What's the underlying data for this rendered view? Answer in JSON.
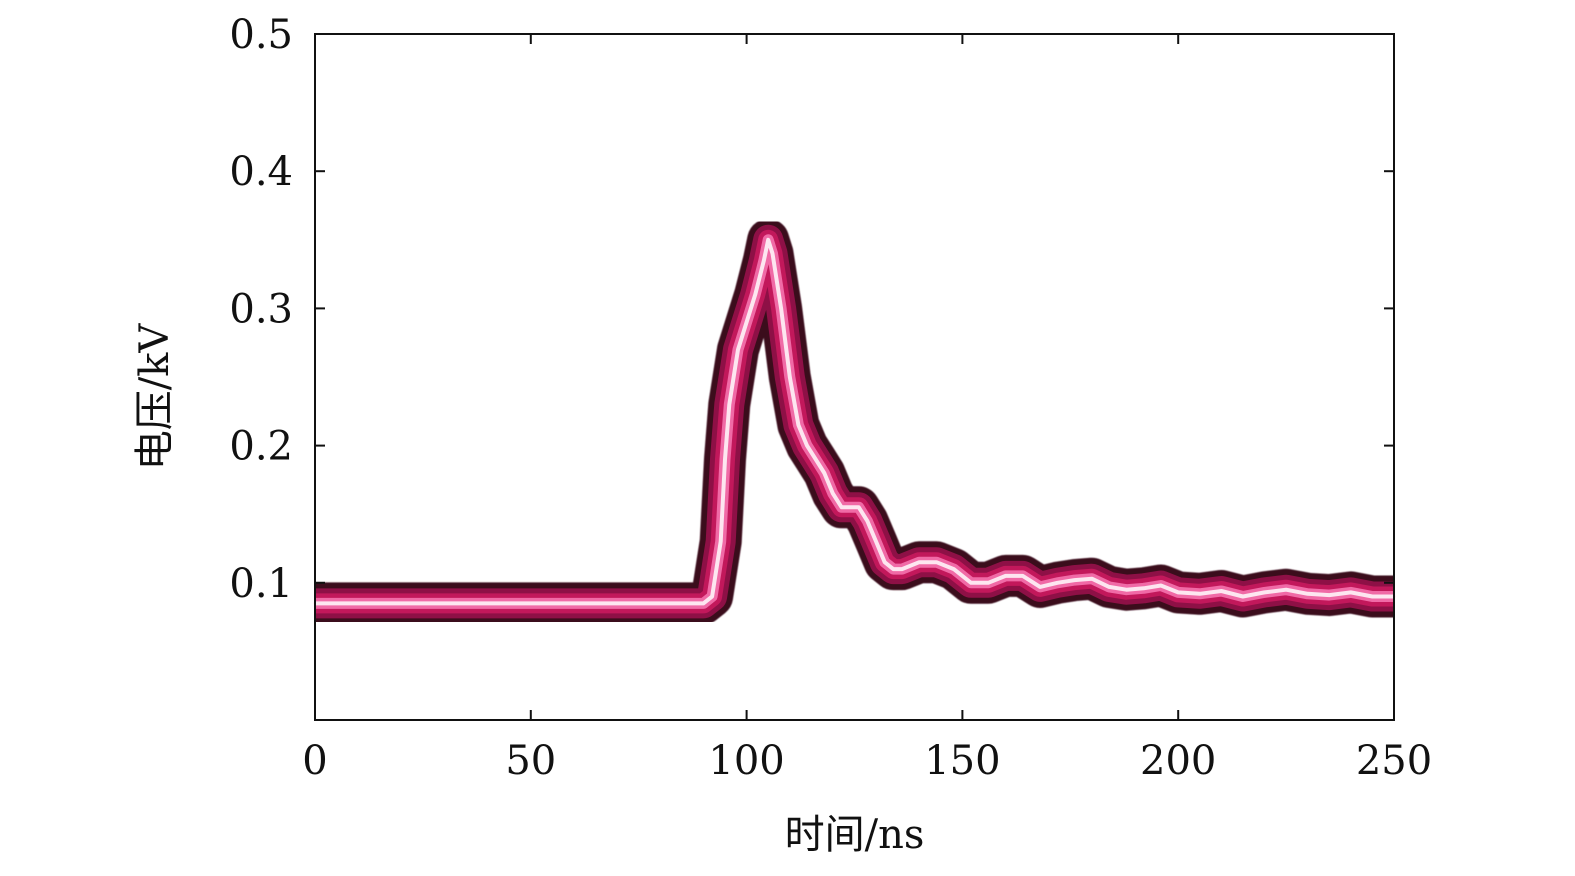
{
  "chart_data": {
    "type": "line",
    "title": "",
    "xlabel": "时间/ns",
    "ylabel": "电压/kV",
    "xlim": [
      0,
      250
    ],
    "ylim": [
      0,
      0.5
    ],
    "x_ticks": [
      "0",
      "50",
      "100",
      "150",
      "200",
      "250"
    ],
    "y_ticks": [
      "0.1",
      "0.2",
      "0.3",
      "0.4",
      "0.5"
    ],
    "grid": false,
    "legend": "none",
    "series": [
      {
        "color": "#c2185b",
        "x": [
          0,
          20,
          40,
          60,
          80,
          90,
          92,
          94,
          95,
          96,
          98,
          100,
          102,
          104,
          105,
          106,
          108,
          110,
          112,
          114,
          116,
          118,
          120,
          122,
          124,
          126,
          128,
          130,
          132,
          134,
          136,
          140,
          144,
          148,
          152,
          156,
          160,
          164,
          168,
          172,
          176,
          180,
          184,
          188,
          192,
          196,
          200,
          205,
          210,
          215,
          220,
          225,
          230,
          235,
          240,
          245,
          250
        ],
        "y": [
          0.085,
          0.085,
          0.085,
          0.085,
          0.085,
          0.085,
          0.09,
          0.13,
          0.19,
          0.23,
          0.27,
          0.29,
          0.31,
          0.335,
          0.35,
          0.34,
          0.3,
          0.25,
          0.215,
          0.2,
          0.19,
          0.18,
          0.165,
          0.155,
          0.155,
          0.155,
          0.145,
          0.13,
          0.115,
          0.11,
          0.11,
          0.115,
          0.115,
          0.11,
          0.1,
          0.1,
          0.105,
          0.105,
          0.097,
          0.1,
          0.102,
          0.103,
          0.097,
          0.095,
          0.096,
          0.098,
          0.093,
          0.092,
          0.094,
          0.09,
          0.093,
          0.095,
          0.092,
          0.091,
          0.093,
          0.09,
          0.09
        ]
      }
    ]
  }
}
